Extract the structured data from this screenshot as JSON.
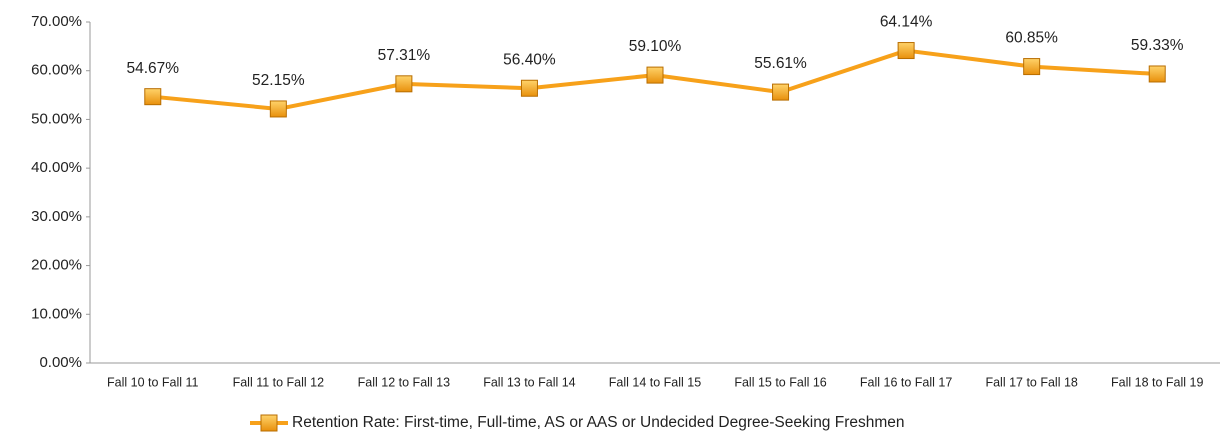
{
  "chart_data": {
    "type": "line",
    "categories": [
      "Fall 10 to Fall 11",
      "Fall 11 to Fall 12",
      "Fall 12 to Fall 13",
      "Fall 13 to Fall 14",
      "Fall 14 to Fall 15",
      "Fall 15 to Fall 16",
      "Fall 16 to Fall 17",
      "Fall 17 to Fall 18",
      "Fall 18 to Fall 19"
    ],
    "series": [
      {
        "name": "Retention Rate: First-time, Full-time, AS or AAS or Undecided Degree-Seeking Freshmen",
        "color": "#f7a11a",
        "values": [
          54.67,
          52.15,
          57.31,
          56.4,
          59.1,
          55.61,
          64.14,
          60.85,
          59.33
        ],
        "value_labels": [
          "54.67%",
          "52.15%",
          "57.31%",
          "56.40%",
          "59.10%",
          "55.61%",
          "64.14%",
          "60.85%",
          "59.33%"
        ]
      }
    ],
    "ylim": [
      0,
      70
    ],
    "yticks": [
      {
        "value": 0,
        "label": "0.00%"
      },
      {
        "value": 10,
        "label": "10.00%"
      },
      {
        "value": 20,
        "label": "20.00%"
      },
      {
        "value": 30,
        "label": "30.00%"
      },
      {
        "value": 40,
        "label": "40.00%"
      },
      {
        "value": 50,
        "label": "50.00%"
      },
      {
        "value": 60,
        "label": "60.00%"
      },
      {
        "value": 70,
        "label": "70.00%"
      }
    ],
    "grid": false,
    "legend": "bottom"
  }
}
